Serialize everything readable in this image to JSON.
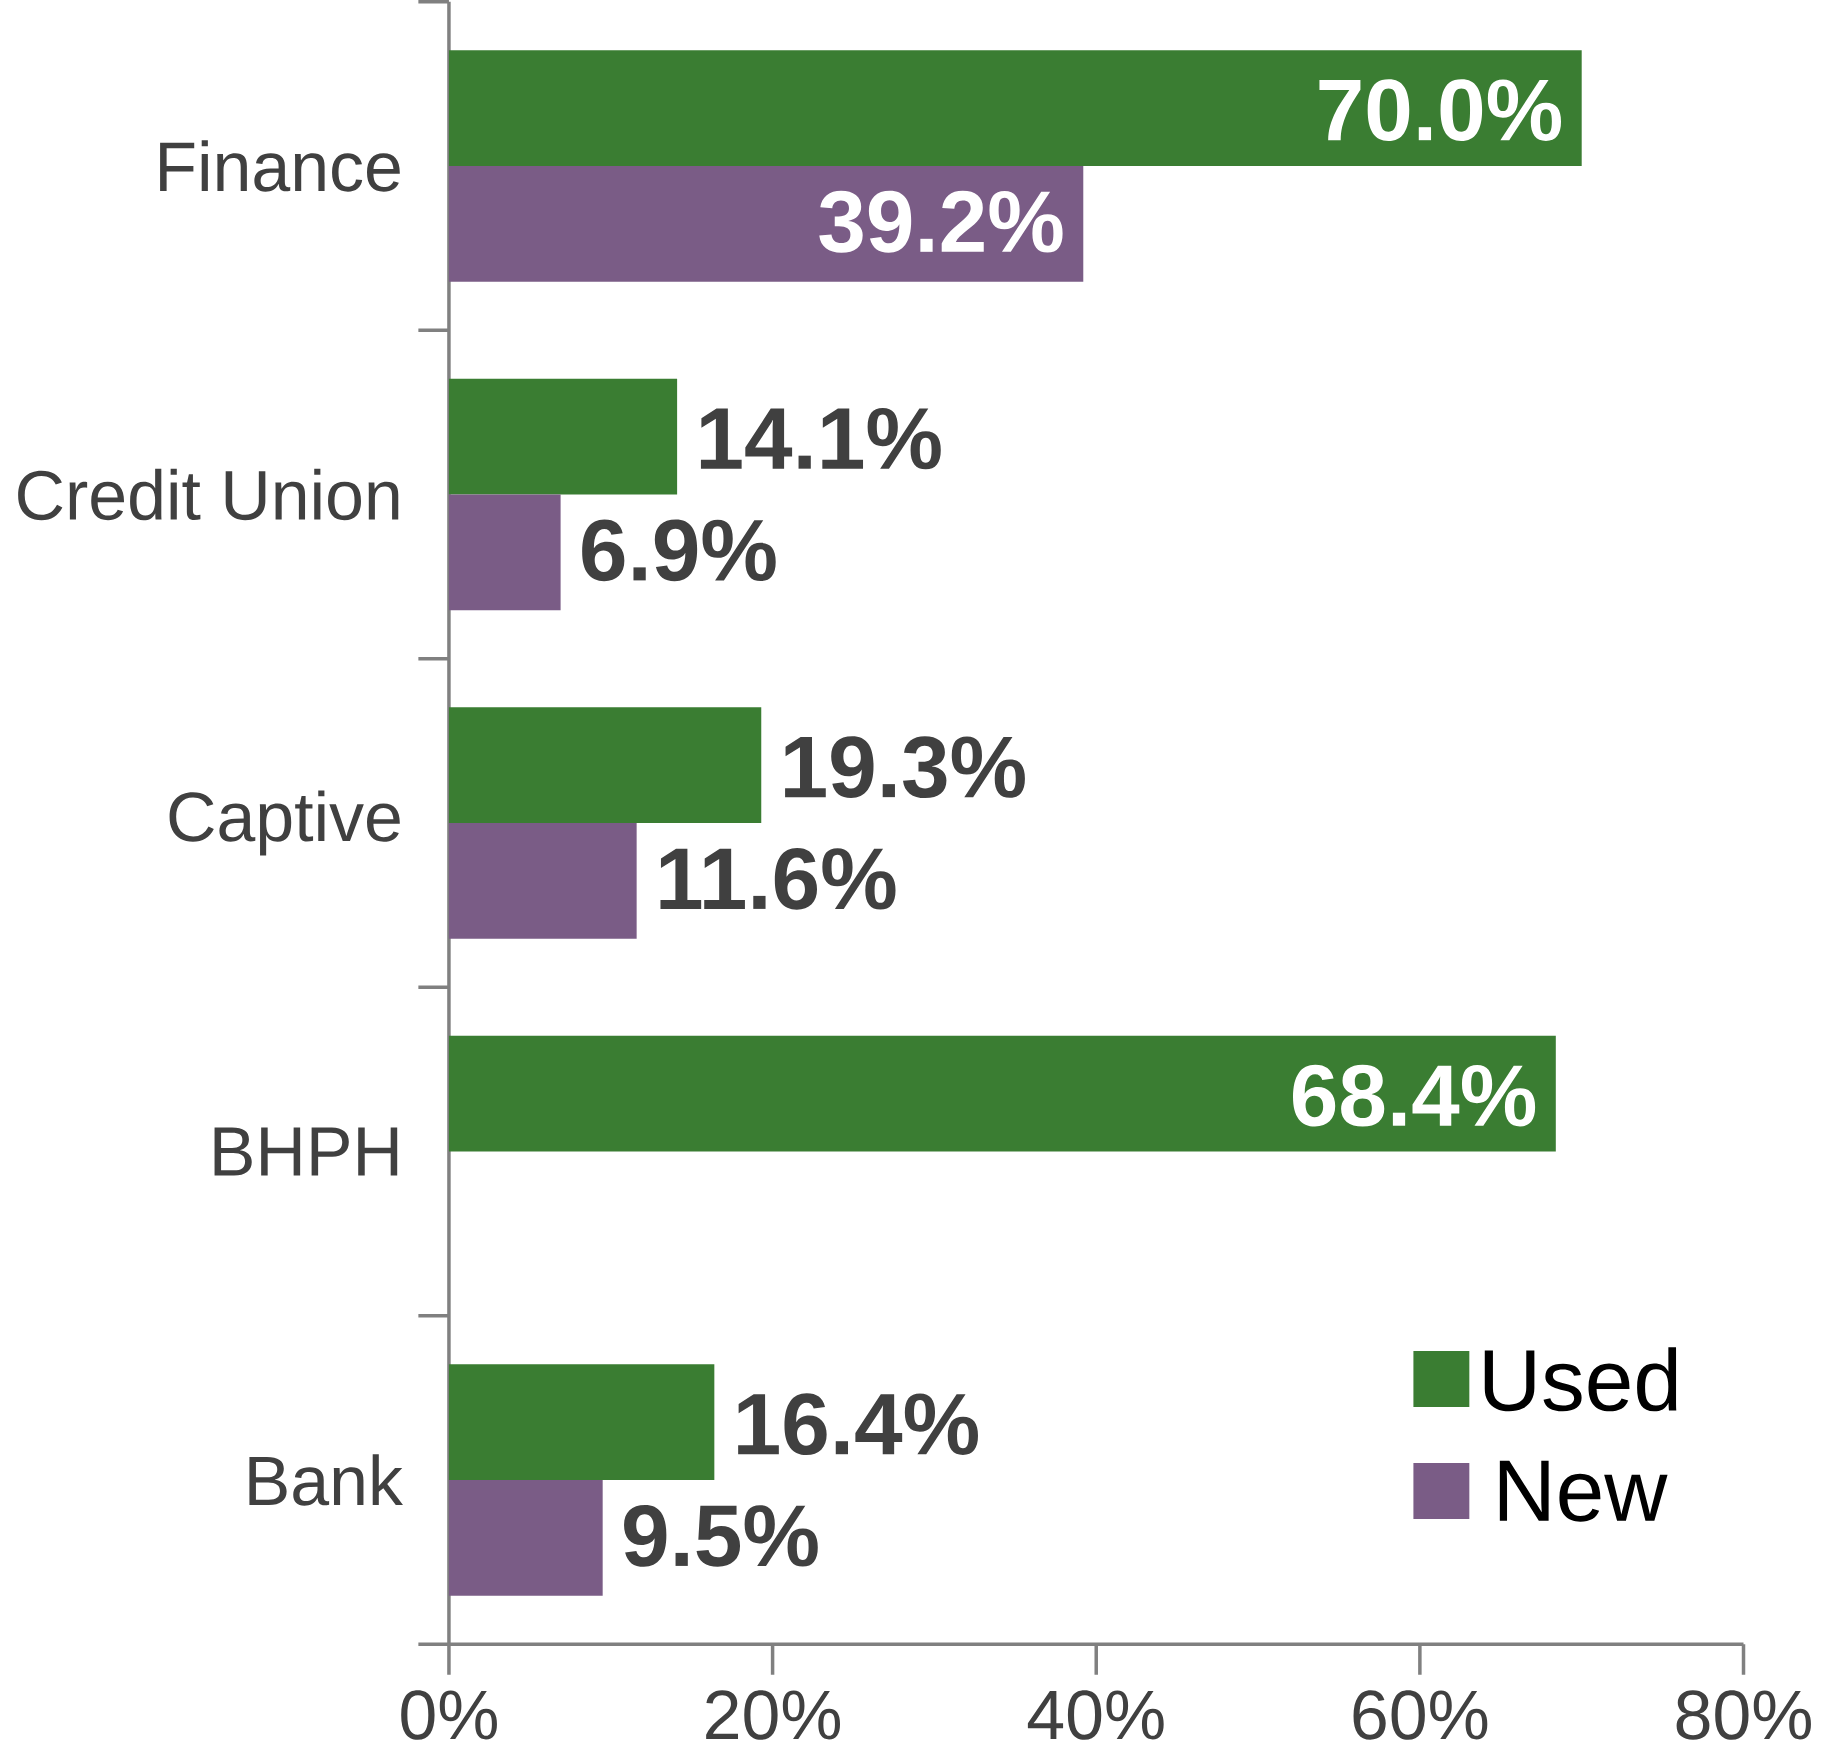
{
  "chart_data": {
    "type": "bar",
    "orientation": "horizontal",
    "categories": [
      "Finance",
      "Credit Union",
      "Captive",
      "BHPH",
      "Bank"
    ],
    "series": [
      {
        "name": "Used",
        "color": "#3a7d32",
        "values": [
          70.0,
          14.1,
          19.3,
          68.4,
          16.4
        ],
        "value_labels": [
          "70.0%",
          "14.1%",
          "19.3%",
          "68.4%",
          "16.4%"
        ]
      },
      {
        "name": "New",
        "color": "#7a5c86",
        "values": [
          39.2,
          6.9,
          11.6,
          null,
          9.5
        ],
        "value_labels": [
          "39.2%",
          "6.9%",
          "11.6%",
          null,
          "9.5%"
        ]
      }
    ],
    "xlim": [
      0,
      80
    ],
    "xticks": [
      {
        "value": 0,
        "label": "0%"
      },
      {
        "value": 20,
        "label": "20%"
      },
      {
        "value": 40,
        "label": "40%"
      },
      {
        "value": 60,
        "label": "60%"
      },
      {
        "value": 80,
        "label": "80%"
      }
    ],
    "grid": false,
    "legend": "bottom right"
  }
}
